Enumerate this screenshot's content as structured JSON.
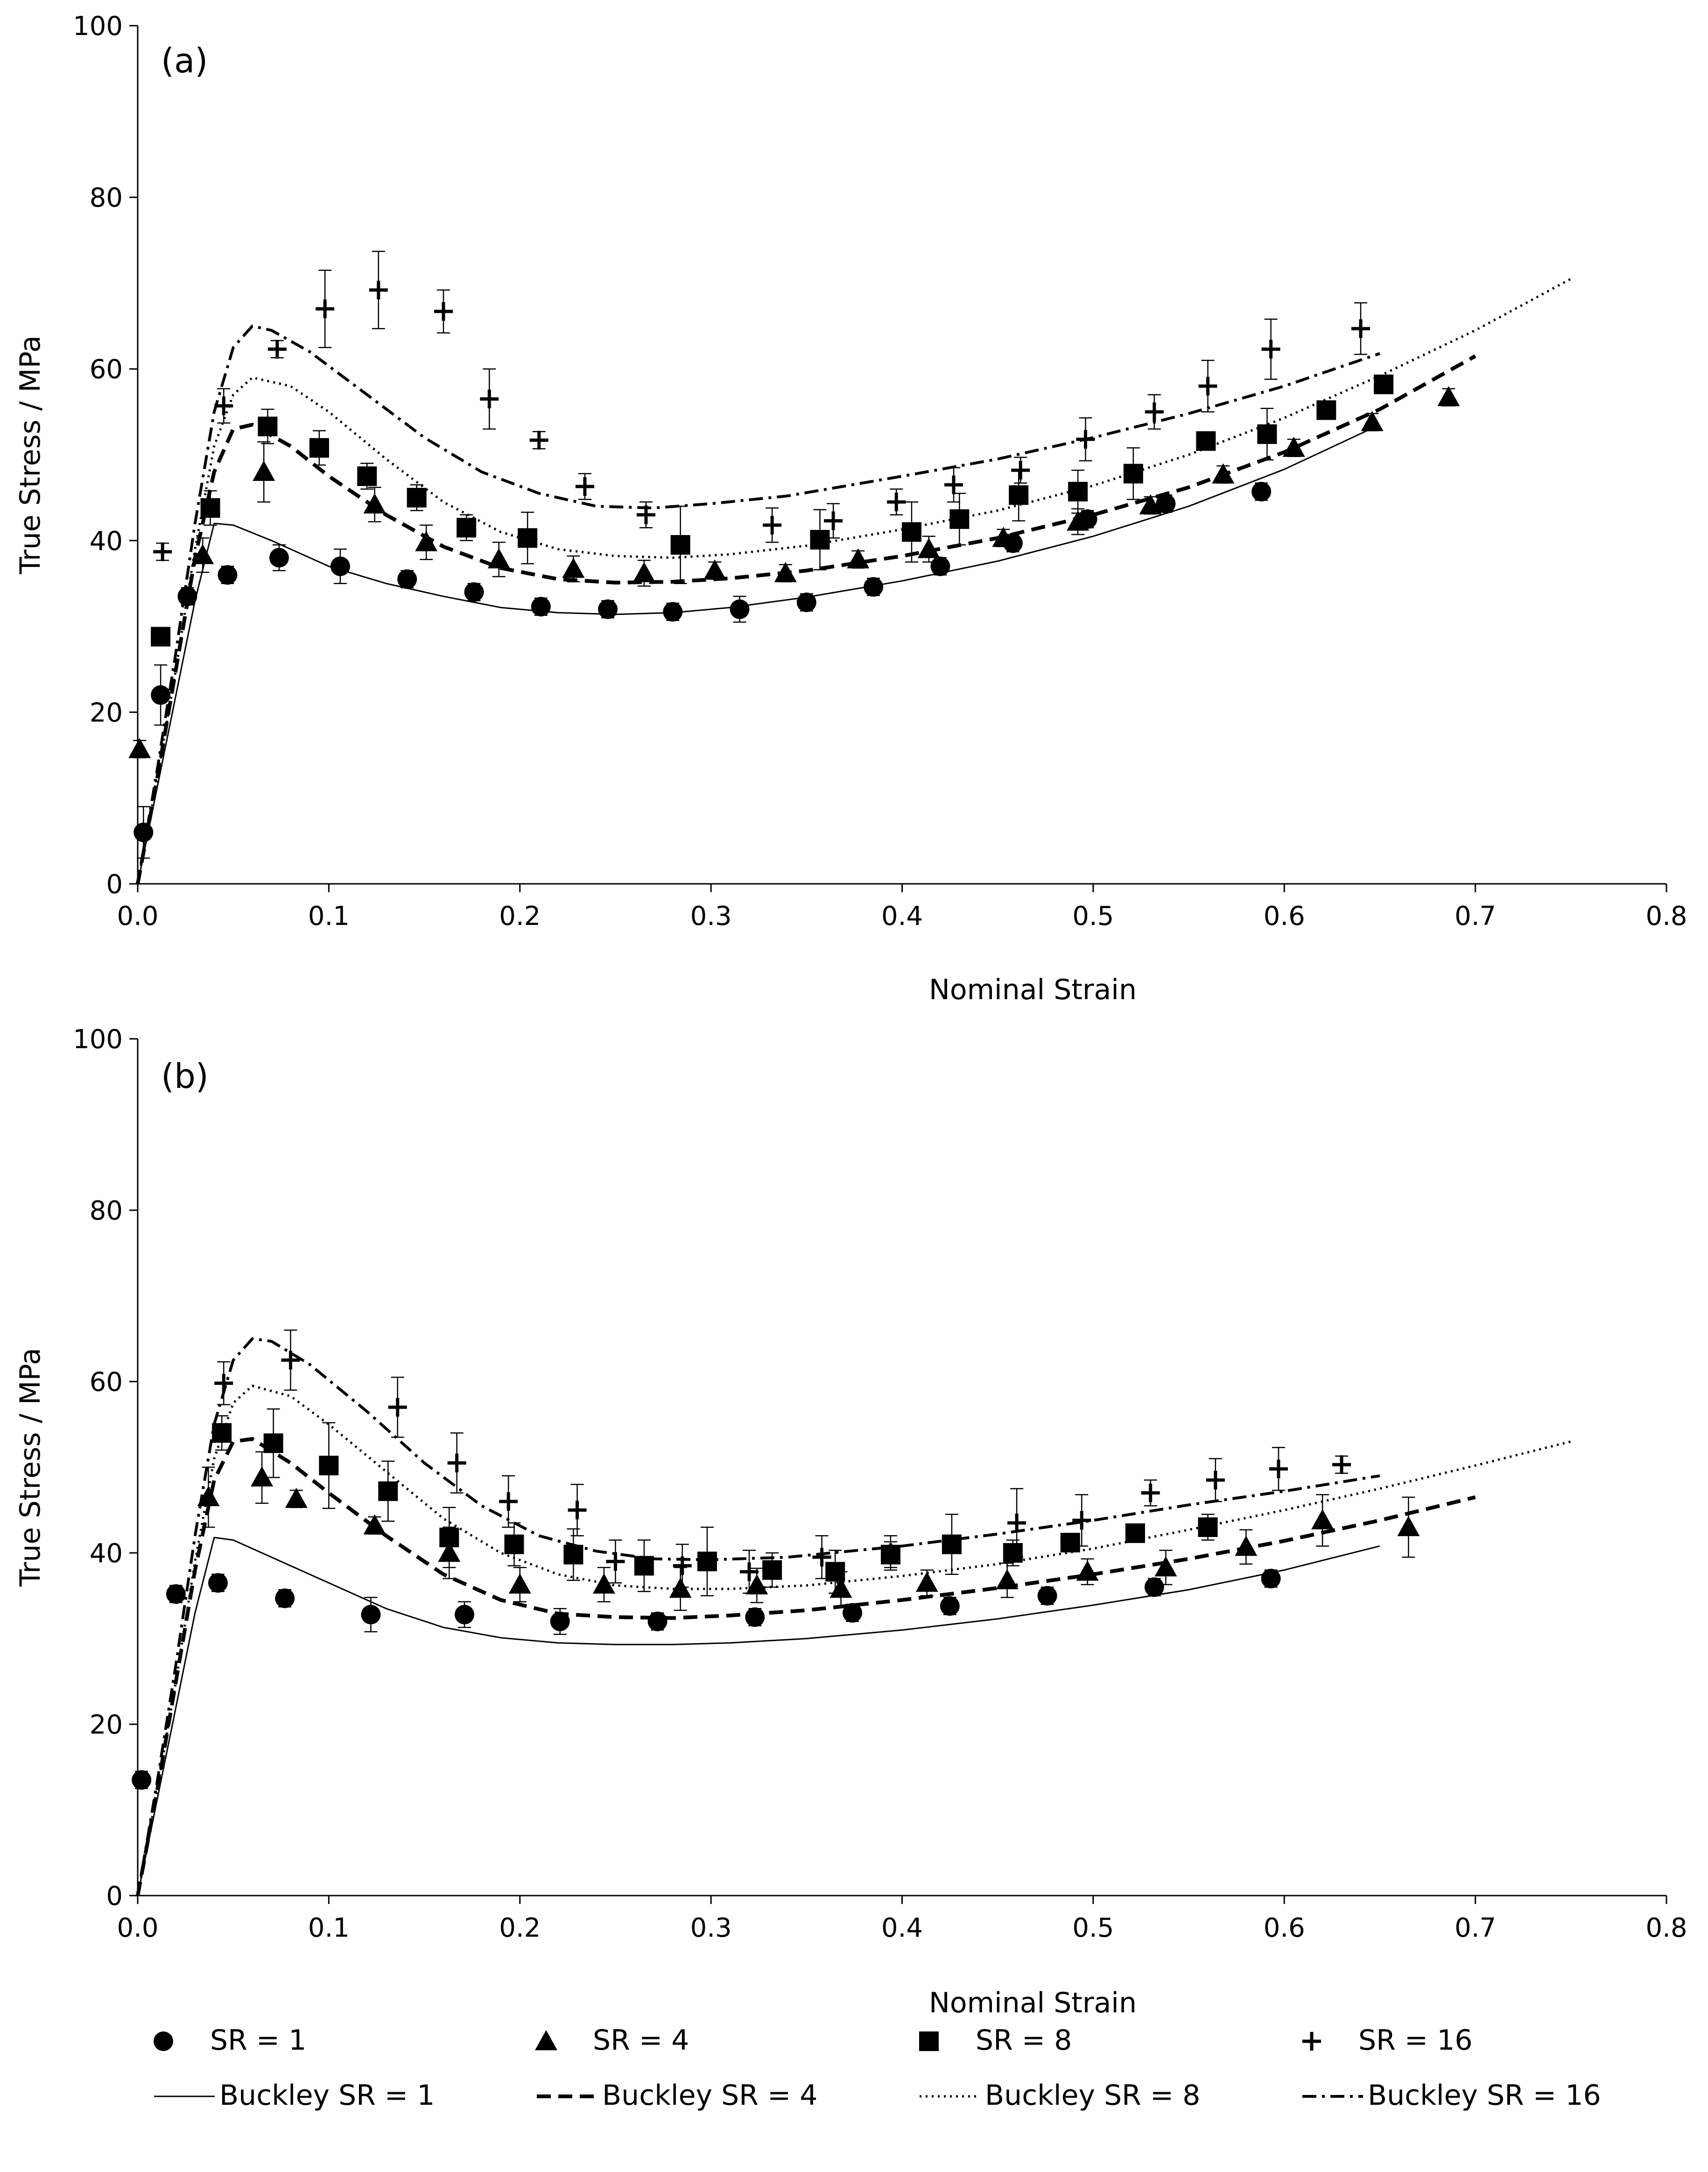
{
  "chart_data": [
    {
      "panel_label": "(a)",
      "type": "scatter",
      "xlabel": "Nominal Strain",
      "ylabel": "True Stress / MPa",
      "xlim": [
        0,
        0.8
      ],
      "ylim": [
        0,
        100
      ],
      "x_ticks": [
        "0.0",
        "0.1",
        "0.2",
        "0.3",
        "0.4",
        "0.5",
        "0.6",
        "0.7",
        "0.8"
      ],
      "y_ticks": [
        "0",
        "20",
        "40",
        "60",
        "80",
        "100"
      ],
      "series": [
        {
          "name": "SR = 1",
          "marker": "circle",
          "x": [
            0.003,
            0.012,
            0.026,
            0.047,
            0.074,
            0.106,
            0.141,
            0.176,
            0.211,
            0.246,
            0.28,
            0.315,
            0.35,
            0.385,
            0.42,
            0.458,
            0.497,
            0.538,
            0.588
          ],
          "y": [
            6,
            22,
            33.5,
            36,
            38,
            37,
            35.5,
            34,
            32.3,
            32,
            31.7,
            32,
            32.8,
            34.6,
            37,
            39.7,
            42.5,
            44.3,
            45.7
          ],
          "err": [
            3,
            3.5,
            1,
            1,
            1.5,
            2,
            1,
            1,
            1,
            1,
            1,
            1.5,
            1,
            1,
            1,
            1,
            1,
            1,
            1
          ]
        },
        {
          "name": "SR = 4",
          "marker": "triangle",
          "x": [
            0.001,
            0.034,
            0.066,
            0.124,
            0.151,
            0.189,
            0.228,
            0.265,
            0.302,
            0.339,
            0.377,
            0.414,
            0.453,
            0.492,
            0.53,
            0.568,
            0.605,
            0.646,
            0.686
          ],
          "y": [
            15.7,
            38.3,
            48,
            44.2,
            39.8,
            37.8,
            36.7,
            36.2,
            36.5,
            36.2,
            37.8,
            39,
            40.3,
            42.2,
            44.1,
            47.7,
            50.8,
            53.8,
            56.7
          ],
          "err": [
            1,
            2,
            3.5,
            2,
            2,
            2,
            1.5,
            1.5,
            1,
            1,
            1,
            1.5,
            1,
            1.5,
            1,
            1,
            1,
            1,
            1
          ]
        },
        {
          "name": "SR = 8",
          "marker": "square",
          "x": [
            0.012,
            0.038,
            0.068,
            0.095,
            0.12,
            0.146,
            0.172,
            0.204,
            0.284,
            0.357,
            0.405,
            0.43,
            0.461,
            0.492,
            0.521,
            0.559,
            0.591,
            0.622,
            0.652
          ],
          "y": [
            28.8,
            43.8,
            53.3,
            50.8,
            47.5,
            45,
            41.5,
            40.3,
            39.5,
            40.1,
            41,
            42.5,
            45.3,
            45.7,
            47.8,
            51.6,
            52.4,
            55.2,
            58.2
          ],
          "err": [
            1,
            2,
            2,
            2,
            1.5,
            1.5,
            1.5,
            3,
            4.5,
            3.5,
            3.5,
            3,
            3,
            2.5,
            3,
            1,
            3,
            1,
            1
          ]
        },
        {
          "name": "SR = 16",
          "marker": "plus",
          "x": [
            0.013,
            0.045,
            0.073,
            0.098,
            0.126,
            0.16,
            0.184,
            0.21,
            0.234,
            0.266,
            0.332,
            0.364,
            0.397,
            0.427,
            0.462,
            0.496,
            0.532,
            0.56,
            0.593,
            0.64
          ],
          "y": [
            38.7,
            55.7,
            62.3,
            67,
            69.2,
            66.7,
            56.5,
            51.7,
            46.3,
            43,
            41.8,
            42.3,
            44.5,
            46.5,
            48.2,
            51.8,
            55,
            58,
            62.3,
            64.7
          ],
          "err": [
            1,
            2,
            1,
            4.5,
            4.5,
            2.5,
            3.5,
            1,
            1.5,
            1.5,
            2,
            2,
            1.5,
            2,
            1.5,
            2.5,
            2,
            3,
            3.5,
            3
          ]
        }
      ],
      "model_series": [
        {
          "name": "Buckley SR = 1",
          "style": "solid",
          "x": [
            0,
            0.01,
            0.02,
            0.03,
            0.04,
            0.05,
            0.07,
            0.1,
            0.13,
            0.16,
            0.19,
            0.22,
            0.25,
            0.28,
            0.31,
            0.35,
            0.4,
            0.45,
            0.5,
            0.55,
            0.6,
            0.65
          ],
          "y": [
            0,
            11,
            22,
            33,
            42,
            41.8,
            40,
            37,
            35,
            33.5,
            32.2,
            31.6,
            31.4,
            31.6,
            32.2,
            33.4,
            35.3,
            37.6,
            40.5,
            44,
            48.3,
            53.5
          ]
        },
        {
          "name": "Buckley SR = 4",
          "style": "dashed",
          "x": [
            0,
            0.01,
            0.02,
            0.03,
            0.04,
            0.05,
            0.06,
            0.08,
            0.1,
            0.13,
            0.16,
            0.19,
            0.22,
            0.25,
            0.28,
            0.31,
            0.35,
            0.4,
            0.45,
            0.5,
            0.55,
            0.6,
            0.65,
            0.7
          ],
          "y": [
            0,
            12,
            25,
            38,
            48,
            53,
            53.5,
            51,
            47.5,
            43,
            39.3,
            36.8,
            35.5,
            35.1,
            35.2,
            35.6,
            36.5,
            38.2,
            40.3,
            43,
            46.2,
            50.3,
            55.3,
            61.5
          ]
        },
        {
          "name": "Buckley SR = 8",
          "style": "dotted",
          "x": [
            0,
            0.01,
            0.02,
            0.03,
            0.04,
            0.05,
            0.06,
            0.08,
            0.1,
            0.13,
            0.16,
            0.19,
            0.22,
            0.25,
            0.28,
            0.31,
            0.35,
            0.4,
            0.45,
            0.5,
            0.55,
            0.6,
            0.65,
            0.7,
            0.75
          ],
          "y": [
            0,
            12,
            25,
            39,
            51,
            57,
            59,
            58,
            55,
            49.5,
            44.5,
            41,
            39,
            38.2,
            38,
            38.4,
            39.4,
            41.3,
            43.5,
            46.4,
            50,
            54.3,
            59.2,
            64.5,
            70.5
          ]
        },
        {
          "name": "Buckley SR = 16",
          "style": "dashdot",
          "x": [
            0,
            0.01,
            0.02,
            0.03,
            0.04,
            0.05,
            0.06,
            0.07,
            0.09,
            0.12,
            0.15,
            0.18,
            0.21,
            0.24,
            0.27,
            0.3,
            0.34,
            0.4,
            0.45,
            0.5,
            0.55,
            0.6,
            0.65
          ],
          "y": [
            0,
            13,
            27,
            42,
            55,
            62.5,
            65,
            64.5,
            62,
            57,
            52,
            48,
            45.5,
            44,
            43.8,
            44.3,
            45.2,
            47.5,
            49.5,
            52,
            54.8,
            58,
            61.8
          ]
        }
      ]
    },
    {
      "panel_label": "(b)",
      "type": "scatter",
      "xlabel": "Nominal Strain",
      "ylabel": "True Stress / MPa",
      "xlim": [
        0,
        0.8
      ],
      "ylim": [
        0,
        100
      ],
      "x_ticks": [
        "0.0",
        "0.1",
        "0.2",
        "0.3",
        "0.4",
        "0.5",
        "0.6",
        "0.7",
        "0.8"
      ],
      "y_ticks": [
        "0",
        "20",
        "40",
        "60",
        "80",
        "100"
      ],
      "series": [
        {
          "name": "SR = 1",
          "marker": "circle",
          "x": [
            0.002,
            0.02,
            0.042,
            0.077,
            0.122,
            0.171,
            0.221,
            0.272,
            0.323,
            0.374,
            0.425,
            0.476,
            0.532,
            0.593
          ],
          "y": [
            13.5,
            35.2,
            36.5,
            34.7,
            32.8,
            32.8,
            32,
            32,
            32.5,
            33,
            33.8,
            35,
            36,
            37
          ],
          "err": [
            1,
            1,
            1,
            1,
            2,
            1.5,
            1.5,
            1,
            1,
            1,
            1,
            1,
            1,
            1
          ]
        },
        {
          "name": "SR = 4",
          "marker": "triangle",
          "x": [
            0.037,
            0.065,
            0.083,
            0.124,
            0.163,
            0.2,
            0.244,
            0.284,
            0.324,
            0.368,
            0.413,
            0.455,
            0.497,
            0.538,
            0.58,
            0.62,
            0.665
          ],
          "y": [
            46.5,
            48.8,
            46.3,
            43.2,
            40,
            36.3,
            36.3,
            35.8,
            36.2,
            35.8,
            36.5,
            36.8,
            37.8,
            38.3,
            40.7,
            43.8,
            43
          ],
          "err": [
            3.5,
            3,
            1,
            1,
            3,
            2,
            2,
            2.5,
            2,
            2,
            1.5,
            2,
            1.5,
            2,
            2,
            3,
            3.5
          ]
        },
        {
          "name": "SR = 8",
          "marker": "square",
          "x": [
            0.044,
            0.071,
            0.1,
            0.131,
            0.163,
            0.197,
            0.228,
            0.265,
            0.298,
            0.332,
            0.365,
            0.394,
            0.426,
            0.458,
            0.488,
            0.522,
            0.56
          ],
          "y": [
            54,
            52.8,
            50.2,
            47.2,
            41.8,
            41,
            39.8,
            38.5,
            39,
            38,
            37.8,
            39.8,
            41,
            40,
            41.2,
            42.3,
            43
          ],
          "err": [
            2,
            4,
            5,
            3.5,
            3.5,
            2.5,
            3,
            3,
            4,
            2,
            2.5,
            1.5,
            3.5,
            1.5,
            1,
            1,
            1.5
          ]
        },
        {
          "name": "SR = 16",
          "marker": "plus",
          "x": [
            0.045,
            0.08,
            0.136,
            0.167,
            0.194,
            0.23,
            0.25,
            0.285,
            0.32,
            0.358,
            0.394,
            0.46,
            0.494,
            0.53,
            0.564,
            0.597,
            0.63
          ],
          "y": [
            59.8,
            62.5,
            57,
            50.5,
            46,
            45,
            39,
            38.5,
            37.8,
            39.5,
            40,
            43.5,
            43.8,
            47,
            48.5,
            49.8,
            50.3
          ],
          "err": [
            2.5,
            3.5,
            3.5,
            3.5,
            3,
            3,
            2.5,
            2.5,
            2.5,
            2.5,
            2,
            4,
            3,
            1.5,
            2.5,
            2.5,
            1
          ]
        }
      ],
      "model_series": [
        {
          "name": "Buckley SR = 1",
          "style": "solid",
          "x": [
            0,
            0.01,
            0.02,
            0.03,
            0.04,
            0.05,
            0.07,
            0.1,
            0.13,
            0.16,
            0.19,
            0.22,
            0.25,
            0.28,
            0.31,
            0.35,
            0.4,
            0.45,
            0.5,
            0.55,
            0.6,
            0.65
          ],
          "y": [
            0,
            11,
            22,
            33,
            41.8,
            41.5,
            39.5,
            36.5,
            33.5,
            31.3,
            30.1,
            29.5,
            29.3,
            29.3,
            29.5,
            30,
            31,
            32.3,
            33.9,
            35.7,
            38,
            40.8
          ]
        },
        {
          "name": "Buckley SR = 4",
          "style": "dashed",
          "x": [
            0,
            0.01,
            0.02,
            0.03,
            0.04,
            0.05,
            0.06,
            0.08,
            0.1,
            0.13,
            0.16,
            0.19,
            0.22,
            0.25,
            0.28,
            0.31,
            0.35,
            0.4,
            0.45,
            0.5,
            0.55,
            0.6,
            0.65,
            0.7
          ],
          "y": [
            0,
            12,
            25,
            38,
            48.5,
            53,
            53.3,
            50.5,
            47,
            42,
            37.5,
            34.5,
            32.9,
            32.5,
            32.4,
            32.7,
            33.3,
            34.5,
            35.9,
            37.5,
            39.3,
            41.4,
            43.8,
            46.5
          ]
        },
        {
          "name": "Buckley SR = 8",
          "style": "dotted",
          "x": [
            0,
            0.01,
            0.02,
            0.03,
            0.04,
            0.05,
            0.06,
            0.08,
            0.1,
            0.13,
            0.16,
            0.19,
            0.22,
            0.25,
            0.28,
            0.31,
            0.35,
            0.4,
            0.45,
            0.5,
            0.55,
            0.6,
            0.65,
            0.7,
            0.75
          ],
          "y": [
            0,
            12,
            25,
            39,
            51,
            57.5,
            59.5,
            58.3,
            55,
            49.5,
            44,
            40,
            37.5,
            36.2,
            35.8,
            35.8,
            36.2,
            37.3,
            38.7,
            40.5,
            42.7,
            45,
            47.5,
            50.2,
            53
          ]
        },
        {
          "name": "Buckley SR = 16",
          "style": "dashdot",
          "x": [
            0,
            0.01,
            0.02,
            0.03,
            0.04,
            0.05,
            0.06,
            0.07,
            0.09,
            0.12,
            0.15,
            0.18,
            0.21,
            0.24,
            0.27,
            0.3,
            0.34,
            0.4,
            0.45,
            0.5,
            0.55,
            0.6,
            0.65
          ],
          "y": [
            0,
            13,
            27,
            42,
            55,
            62.5,
            65,
            64.7,
            62,
            56.5,
            50.5,
            45.5,
            42,
            40.2,
            39.3,
            39.2,
            39.5,
            40.8,
            42.2,
            43.8,
            45.6,
            47.2,
            49
          ]
        }
      ]
    }
  ],
  "legend": {
    "items": [
      {
        "label": "SR = 1",
        "marker": "circle"
      },
      {
        "label": "SR = 4",
        "marker": "triangle"
      },
      {
        "label": "SR = 8",
        "marker": "square"
      },
      {
        "label": "SR = 16",
        "marker": "plus"
      },
      {
        "label": "Buckley SR = 1",
        "line": "solid"
      },
      {
        "label": "Buckley SR = 4",
        "line": "dashed"
      },
      {
        "label": "Buckley SR = 8",
        "line": "dotted"
      },
      {
        "label": "Buckley SR = 16",
        "line": "dashdot"
      }
    ]
  }
}
